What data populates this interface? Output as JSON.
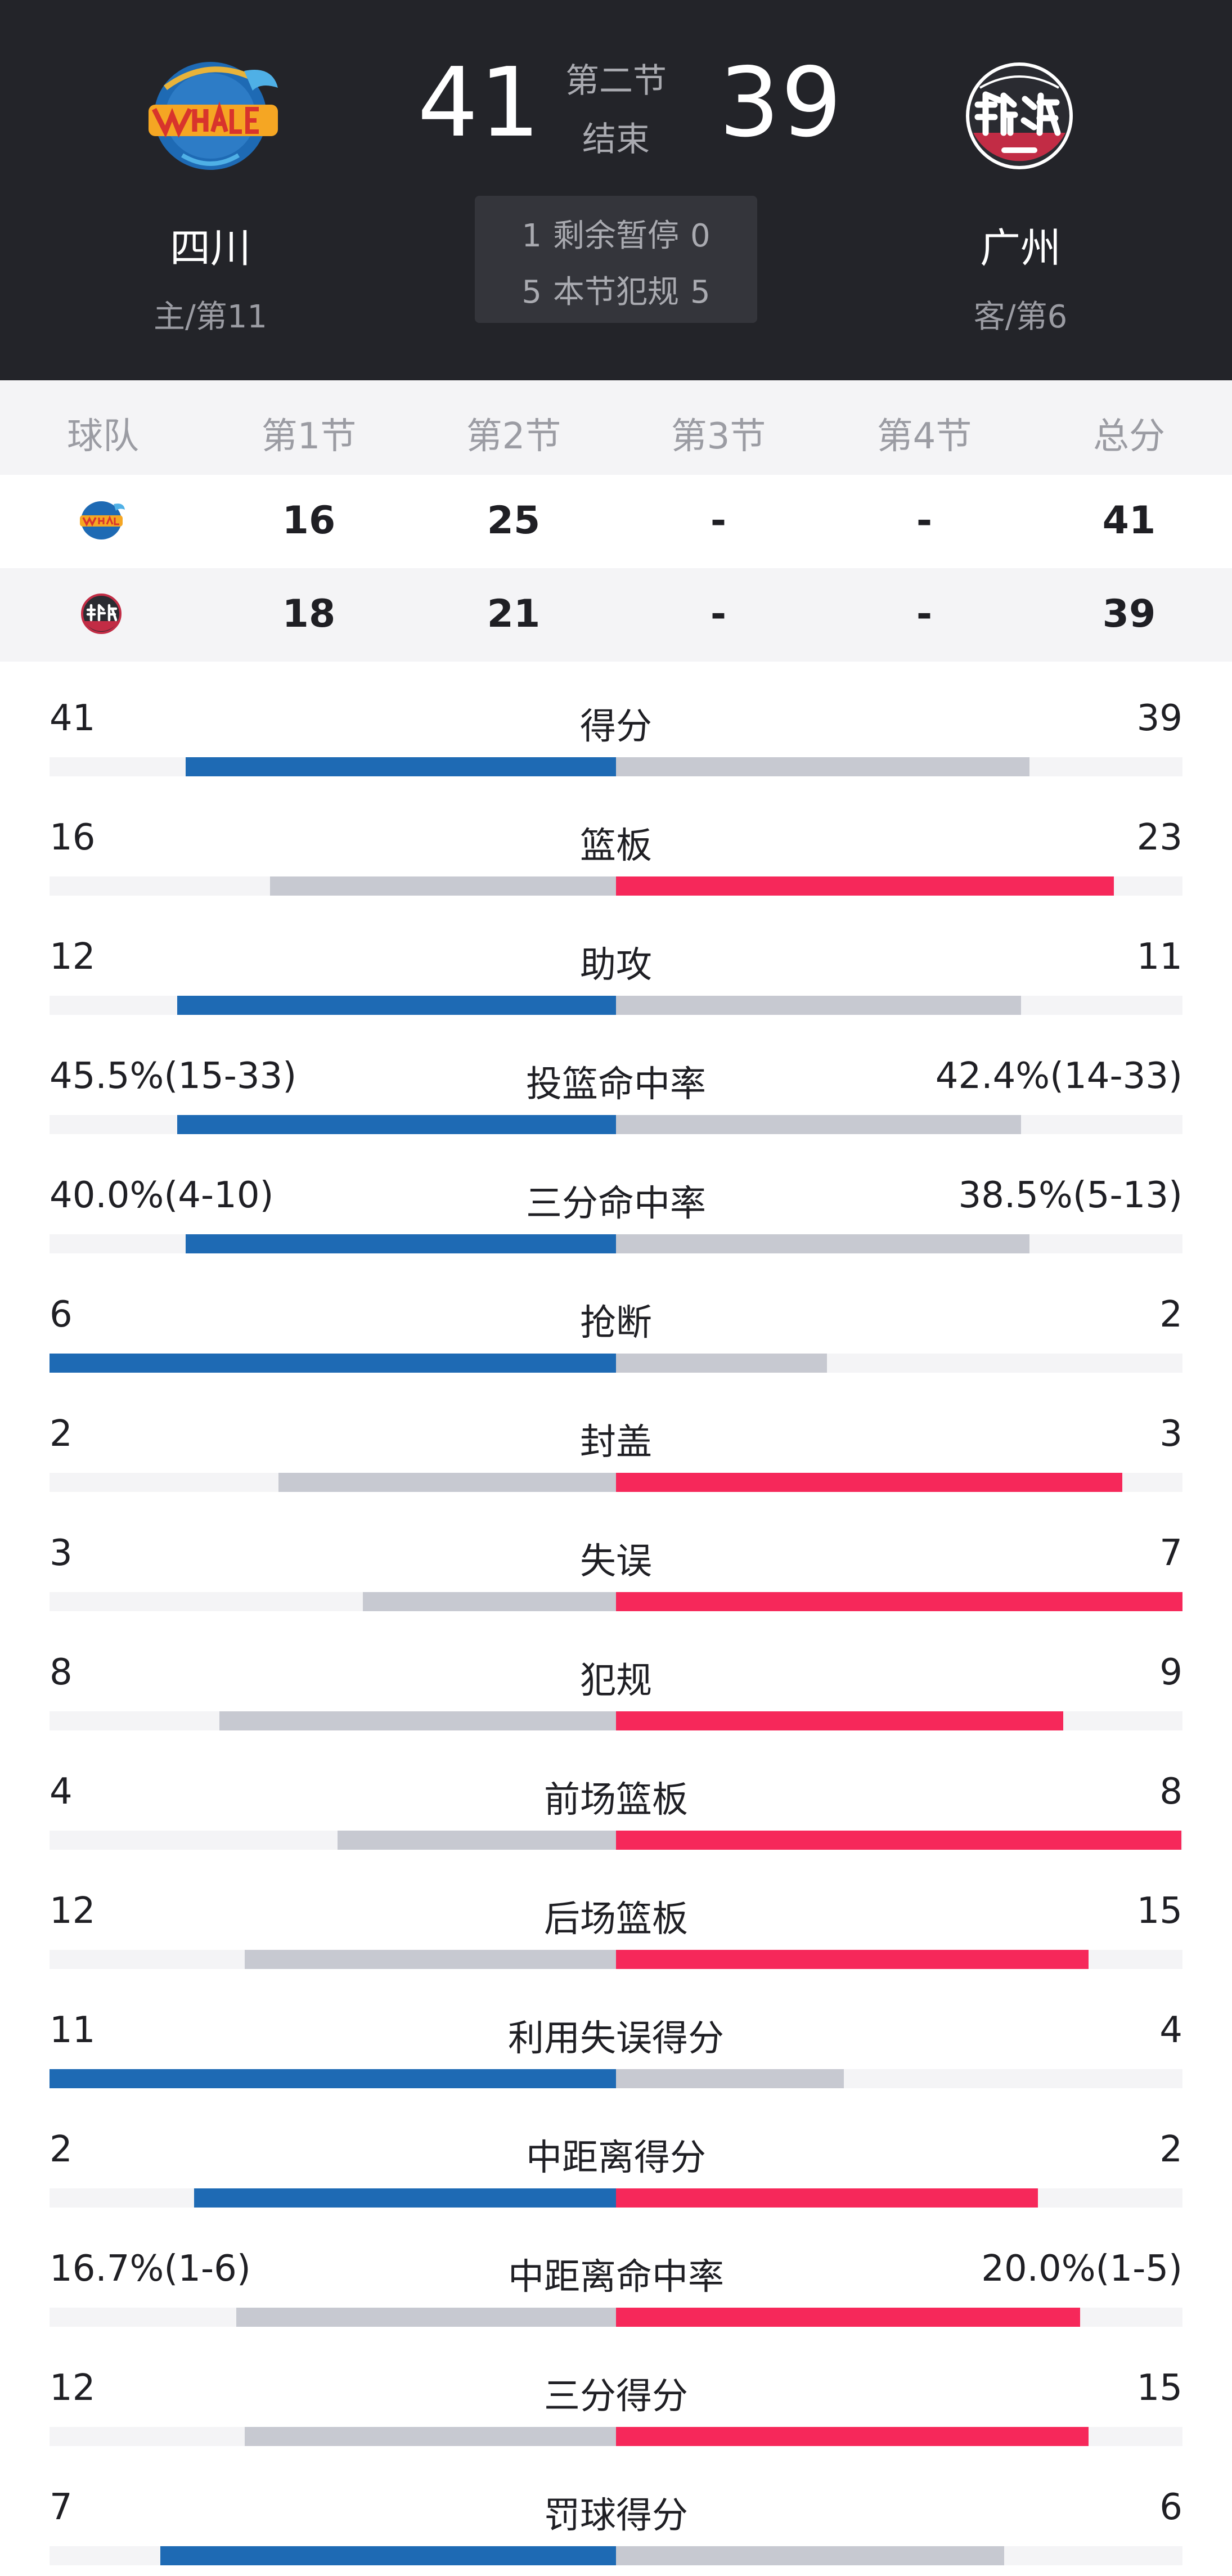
{
  "colors": {
    "header_bg": "#232429",
    "home_accent": "#1e6ab4",
    "away_accent": "#f6285a",
    "neutral_bar": "#c7c9d1",
    "track": "#f4f4f6"
  },
  "header": {
    "home": {
      "name": "四川",
      "sub": "主/第11",
      "score": "41",
      "logo_icon": "sichuan-whales-logo-icon"
    },
    "away": {
      "name": "广州",
      "sub": "客/第6",
      "score": "39",
      "logo_icon": "guangzhou-loong-lions-logo-icon"
    },
    "period_top": "第二节",
    "period_bottom": "结束",
    "timeouts": {
      "home": "1",
      "label": "剩余暂停",
      "away": "0"
    },
    "fouls": {
      "home": "5",
      "label": "本节犯规",
      "away": "5"
    }
  },
  "quarters": {
    "headers": [
      "球队",
      "第1节",
      "第2节",
      "第3节",
      "第4节",
      "总分"
    ],
    "rows": [
      {
        "team_icon": "sichuan-whales-mini-logo-icon",
        "values": [
          "16",
          "25",
          "-",
          "-",
          "41"
        ]
      },
      {
        "team_icon": "guangzhou-loong-lions-mini-logo-icon",
        "values": [
          "18",
          "21",
          "-",
          "-",
          "39"
        ]
      }
    ]
  },
  "stats": [
    {
      "label": "得分",
      "home": "41",
      "away": "39",
      "home_share": 0.51,
      "leader": "home"
    },
    {
      "label": "篮板",
      "home": "16",
      "away": "23",
      "home_share": 0.41,
      "leader": "away"
    },
    {
      "label": "助攻",
      "home": "12",
      "away": "11",
      "home_share": 0.52,
      "leader": "home"
    },
    {
      "label": "投篮命中率",
      "home": "45.5%(15-33)",
      "away": "42.4%(14-33)",
      "home_share": 0.52,
      "leader": "home"
    },
    {
      "label": "三分命中率",
      "home": "40.0%(4-10)",
      "away": "38.5%(5-13)",
      "home_share": 0.51,
      "leader": "home"
    },
    {
      "label": "抢断",
      "home": "6",
      "away": "2",
      "home_share": 0.75,
      "leader": "home"
    },
    {
      "label": "封盖",
      "home": "2",
      "away": "3",
      "home_share": 0.4,
      "leader": "away"
    },
    {
      "label": "失误",
      "home": "3",
      "away": "7",
      "home_share": 0.3,
      "leader": "away"
    },
    {
      "label": "犯规",
      "home": "8",
      "away": "9",
      "home_share": 0.47,
      "leader": "away"
    },
    {
      "label": "前场篮板",
      "home": "4",
      "away": "8",
      "home_share": 0.33,
      "leader": "away"
    },
    {
      "label": "后场篮板",
      "home": "12",
      "away": "15",
      "home_share": 0.44,
      "leader": "away"
    },
    {
      "label": "利用失误得分",
      "home": "11",
      "away": "4",
      "home_share": 0.73,
      "leader": "home"
    },
    {
      "label": "中距离得分",
      "home": "2",
      "away": "2",
      "home_share": 0.5,
      "leader": "tie"
    },
    {
      "label": "中距离命中率",
      "home": "16.7%(1-6)",
      "away": "20.0%(1-5)",
      "home_share": 0.45,
      "leader": "away"
    },
    {
      "label": "三分得分",
      "home": "12",
      "away": "15",
      "home_share": 0.44,
      "leader": "away"
    },
    {
      "label": "罚球得分",
      "home": "7",
      "away": "6",
      "home_share": 0.54,
      "leader": "home"
    }
  ]
}
